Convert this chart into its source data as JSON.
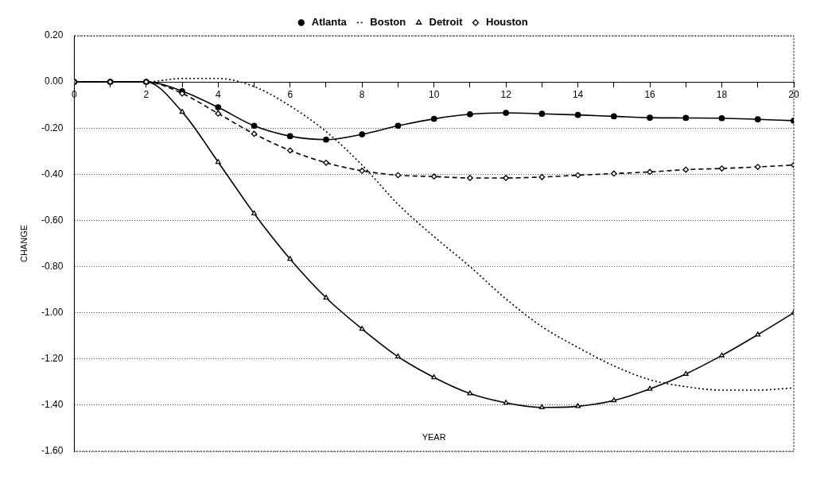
{
  "chart_data": {
    "type": "line",
    "xlabel": "YEAR",
    "ylabel": "CHANGE",
    "x": [
      0,
      1,
      2,
      3,
      4,
      5,
      6,
      7,
      8,
      9,
      10,
      11,
      12,
      13,
      14,
      15,
      16,
      17,
      18,
      19,
      20
    ],
    "xlim": [
      0,
      20
    ],
    "xticks": [
      0,
      {
        "value": 1,
        "label": null
      },
      2,
      {
        "value": 3,
        "label": null
      },
      4,
      {
        "value": 5,
        "label": null
      },
      6,
      {
        "value": 7,
        "label": null
      },
      8,
      {
        "value": 9,
        "label": null
      },
      10,
      {
        "value": 11,
        "label": null
      },
      12,
      {
        "value": 13,
        "label": null
      },
      14,
      {
        "value": 15,
        "label": null
      },
      16,
      {
        "value": 17,
        "label": null
      },
      18,
      {
        "value": 19,
        "label": null
      },
      20
    ],
    "ylim": [
      -1.6,
      0.2
    ],
    "yticks": [
      {
        "value": 0.2,
        "label": "0.20"
      },
      {
        "value": 0,
        "label": "0.00"
      },
      {
        "value": -0.2,
        "label": "-0.20"
      },
      {
        "value": -0.4,
        "label": "-0.40"
      },
      {
        "value": -0.6,
        "label": "-0.60"
      },
      {
        "value": -0.8,
        "label": "-0.80"
      },
      {
        "value": -1,
        "label": "-1.00"
      },
      {
        "value": -1.2,
        "label": "-1.20"
      },
      {
        "value": -1.4,
        "label": "-1.40"
      },
      {
        "value": -1.6,
        "label": "-1.60"
      }
    ],
    "grid": "y",
    "legend": "top",
    "series": [
      {
        "name": "Atlanta",
        "color": "#000000",
        "marker": "circle",
        "line_style": "solid",
        "values": [
          0,
          0,
          0,
          -0.04,
          -0.11,
          -0.19,
          -0.235,
          -0.25,
          -0.227,
          -0.19,
          -0.16,
          -0.14,
          -0.134,
          -0.138,
          -0.143,
          -0.149,
          -0.155,
          -0.156,
          -0.157,
          -0.162,
          -0.168
        ]
      },
      {
        "name": "Boston",
        "color": "#000000",
        "marker": "none",
        "line_style": "dotted",
        "values": [
          0,
          0,
          0,
          0.015,
          0.015,
          -0.02,
          -0.104,
          -0.215,
          -0.36,
          -0.53,
          -0.67,
          -0.8,
          -0.94,
          -1.06,
          -1.15,
          -1.23,
          -1.29,
          -1.32,
          -1.335,
          -1.335,
          -1.325
        ]
      },
      {
        "name": "Detroit",
        "color": "#000000",
        "marker": "triangle",
        "line_style": "solid",
        "values": [
          0,
          0,
          0,
          -0.13,
          -0.347,
          -0.57,
          -0.767,
          -0.935,
          -1.07,
          -1.19,
          -1.28,
          -1.35,
          -1.39,
          -1.41,
          -1.405,
          -1.38,
          -1.33,
          -1.265,
          -1.185,
          -1.095,
          -1.0
        ]
      },
      {
        "name": "Houston",
        "color": "#000000",
        "marker": "diamond",
        "line_style": "dashed",
        "values": [
          0,
          0,
          0,
          -0.05,
          -0.137,
          -0.225,
          -0.297,
          -0.35,
          -0.385,
          -0.404,
          -0.41,
          -0.416,
          -0.416,
          -0.412,
          -0.404,
          -0.397,
          -0.39,
          -0.38,
          -0.375,
          -0.368,
          -0.36
        ]
      }
    ]
  }
}
